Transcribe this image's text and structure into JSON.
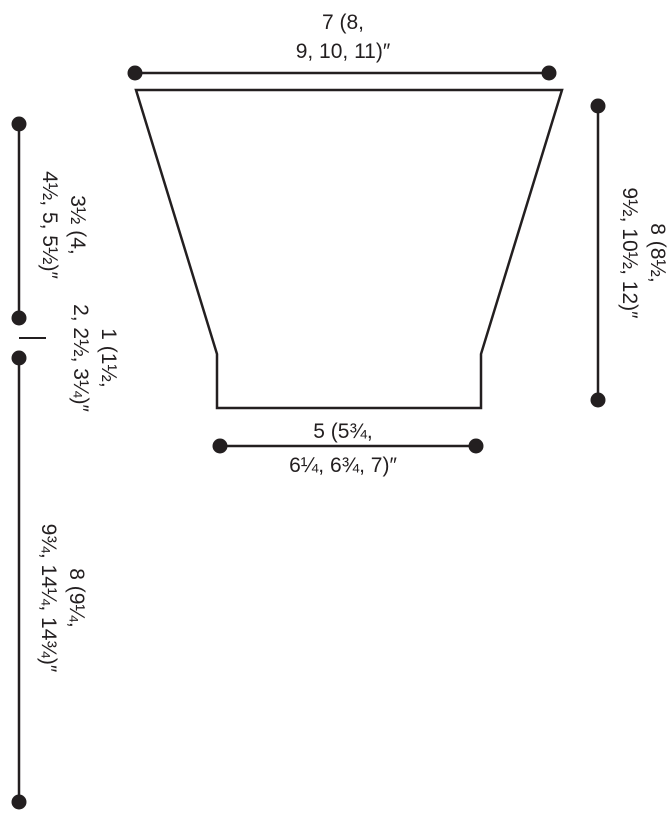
{
  "colors": {
    "line": "#231f20",
    "background": "#ffffff"
  },
  "measurements": {
    "top_width": {
      "line1": "7 (8,",
      "line2": "9, 10, 11)″"
    },
    "bottom_width": {
      "line1": "5 (5¾,",
      "line2": "6¼, 6¾, 7)″"
    },
    "right_height": {
      "line1": "8 (8½,",
      "line2": "9½, 10½, 12)″"
    },
    "left_upper": {
      "line1": "3½ (4,",
      "line2": "4½, 5, 5½)″"
    },
    "left_middle": {
      "line1": "1 (1½,",
      "line2": "2, 2½, 3¼)″"
    },
    "left_lower": {
      "line1": "8 (9¼,",
      "line2": "9¾, 14¼, 14¾)″"
    }
  }
}
